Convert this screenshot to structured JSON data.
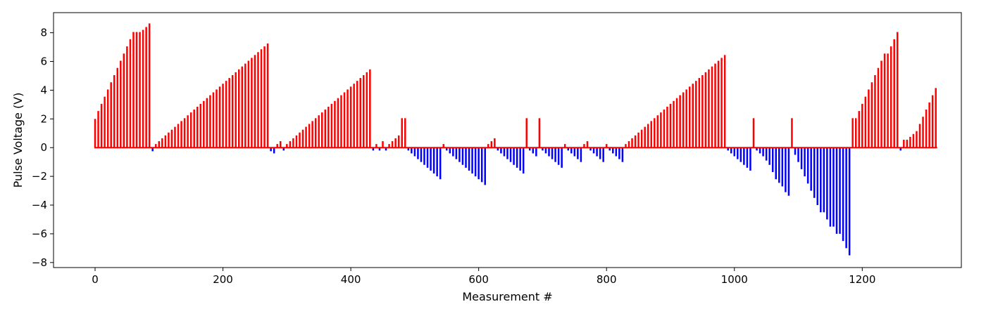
{
  "chart_data": {
    "type": "bar",
    "title": "",
    "xlabel": "Measurement #",
    "ylabel": "Pulse Voltage (V)",
    "xlim": [
      -65,
      1355
    ],
    "ylim": [
      -8.35,
      9.4
    ],
    "xticks": [
      0,
      200,
      400,
      600,
      800,
      1000,
      1200
    ],
    "xtick_labels": [
      "0",
      "200",
      "400",
      "600",
      "800",
      "1000",
      "1200"
    ],
    "yticks": [
      -8,
      -6,
      -4,
      -2,
      0,
      2,
      4,
      6,
      8
    ],
    "ytick_labels": [
      "−8",
      "−6",
      "−4",
      "−2",
      "0",
      "2",
      "4",
      "6",
      "8"
    ],
    "grid": false,
    "colors": {
      "positive": "#ff0000",
      "negative": "#0000ff"
    },
    "bar_spacing": 5,
    "series": [
      {
        "x0": 0,
        "values": [
          2.0,
          2.55,
          3.05,
          3.55,
          4.05,
          4.55,
          5.05,
          5.55,
          6.05,
          6.55,
          7.05,
          7.55,
          8.05,
          8.05,
          8.05,
          8.2,
          8.4,
          8.65
        ]
      },
      {
        "x0": 90,
        "values": [
          -0.25
        ]
      },
      {
        "x0": 95,
        "values": [
          0.25,
          0.45,
          0.65,
          0.85,
          1.05,
          1.25,
          1.45,
          1.65,
          1.85,
          2.05,
          2.25,
          2.45,
          2.65,
          2.85,
          3.05,
          3.25,
          3.45,
          3.65,
          3.85,
          4.05,
          4.25,
          4.45,
          4.65,
          4.85,
          5.05,
          5.25,
          5.45,
          5.65,
          5.85,
          6.05,
          6.25,
          6.45,
          6.65,
          6.85,
          7.05,
          7.25
        ]
      },
      {
        "x0": 275,
        "values": [
          -0.25,
          -0.4,
          0.25,
          0.45,
          -0.2,
          0.25,
          0.45,
          0.65,
          0.85,
          1.05,
          1.25,
          1.45,
          1.65,
          1.85,
          2.05,
          2.25,
          2.45,
          2.65,
          2.85,
          3.05,
          3.25,
          3.45,
          3.65,
          3.85,
          4.05,
          4.25,
          4.45,
          4.65,
          4.85,
          5.05,
          5.25,
          5.45
        ]
      },
      {
        "x0": 435,
        "values": [
          -0.2,
          0.25,
          -0.2,
          0.45,
          -0.2,
          0.25,
          0.45,
          0.65,
          0.85,
          2.05
        ]
      },
      {
        "x0": 485,
        "values": [
          2.05,
          -0.2,
          -0.4,
          -0.6,
          -0.8,
          -1.0,
          -1.2,
          -1.4,
          -1.6,
          -1.8,
          -2.0,
          -2.2
        ]
      },
      {
        "x0": 545,
        "values": [
          0.25,
          -0.2,
          -0.4,
          -0.6,
          -0.8,
          -1.0,
          -1.2,
          -1.4,
          -1.6,
          -1.8,
          -2.0,
          -2.2,
          -2.4,
          -2.6
        ]
      },
      {
        "x0": 615,
        "values": [
          0.25,
          0.45,
          0.65,
          -0.2,
          -0.4,
          -0.6,
          -0.8,
          -1.0,
          -1.2,
          -1.4,
          -1.6,
          -1.8
        ]
      },
      {
        "x0": 675,
        "values": [
          2.05,
          -0.2,
          -0.4,
          -0.6,
          2.05,
          -0.2,
          -0.4,
          -0.6,
          -0.8,
          -1.0,
          -1.2,
          -1.4
        ]
      },
      {
        "x0": 735,
        "values": [
          0.25,
          -0.2,
          -0.4,
          -0.6,
          -0.8,
          -1.0,
          0.25,
          0.45,
          -0.2,
          -0.4,
          -0.6,
          -0.8,
          -1.0
        ]
      },
      {
        "x0": 800,
        "values": [
          0.25,
          -0.2,
          -0.4,
          -0.6,
          -0.8,
          -1.0
        ]
      },
      {
        "x0": 830,
        "values": [
          0.25,
          0.45,
          0.65,
          0.85,
          1.05,
          1.25,
          1.45,
          1.65,
          1.85,
          2.05,
          2.25,
          2.45,
          2.65,
          2.85,
          3.05,
          3.25,
          3.45,
          3.65,
          3.85,
          4.05,
          4.25,
          4.45,
          4.65,
          4.85,
          5.05,
          5.25,
          5.45,
          5.65,
          5.85,
          6.05,
          6.25,
          6.45
        ]
      },
      {
        "x0": 990,
        "values": [
          -0.2,
          -0.4,
          -0.6,
          -0.8,
          -1.0,
          -1.2,
          -1.4,
          -1.6
        ]
      },
      {
        "x0": 1030,
        "values": [
          2.05,
          -0.2,
          -0.4,
          -0.6,
          -0.9,
          -1.2,
          -1.7,
          -2.2,
          -2.45,
          -2.7,
          -3.1,
          -3.35
        ]
      },
      {
        "x0": 1090,
        "values": [
          2.05,
          -0.5,
          -1.0,
          -1.5,
          -2.0,
          -2.5,
          -3.0,
          -3.5,
          -4.0,
          -4.5,
          -4.5,
          -5.0,
          -5.5,
          -5.5,
          -6.0,
          -6.0,
          -6.5,
          -7.0,
          -7.5
        ]
      },
      {
        "x0": 1185,
        "values": [
          2.05,
          2.05,
          2.55,
          3.05,
          3.55,
          4.05,
          4.55,
          5.05,
          5.55,
          6.05,
          6.55,
          6.55,
          7.05,
          7.55,
          8.05
        ]
      },
      {
        "x0": 1260,
        "values": [
          -0.2,
          0.55,
          0.55,
          0.75,
          0.95,
          1.15,
          1.65,
          2.15,
          2.65,
          3.15,
          3.65,
          4.15
        ]
      }
    ]
  }
}
